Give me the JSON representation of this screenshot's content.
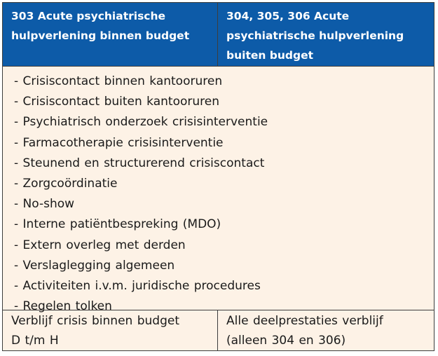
{
  "header": {
    "left_lines": [
      "303 Acute psychiatrische",
      "hulpverlening binnen budget"
    ],
    "right_lines": [
      "304, 305, 306 Acute",
      "psychiatrische hulpverlening",
      "buiten budget"
    ]
  },
  "items": [
    "- Crisiscontact binnen kantooruren",
    "- Crisiscontact buiten kantooruren",
    "- Psychiatrisch onderzoek crisisinterventie",
    "- Farmacotherapie crisisinterventie",
    "- Steunend en structurerend crisiscontact",
    "- Zorgcoördinatie",
    "- No-show",
    "- Interne patiëntbespreking (MDO)",
    "- Extern overleg met derden",
    "- Verslaglegging algemeen",
    "- Activiteiten i.v.m. juridische procedures",
    "- Regelen tolken"
  ],
  "footer": {
    "left_lines": [
      "Verblijf crisis binnen budget",
      "D t/m H"
    ],
    "right_lines": [
      "Alle deelprestaties verblijf",
      "(alleen 304 en 306)"
    ]
  },
  "colors": {
    "header_bg": "#0d5ba8",
    "body_bg": "#fdf2e6",
    "border": "#3d3d3d"
  }
}
